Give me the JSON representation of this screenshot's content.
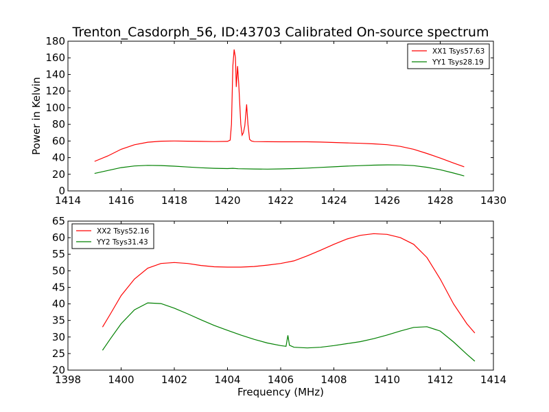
{
  "chart_data": [
    {
      "type": "line",
      "title": "Trenton_Casdorph_56, ID:43703 Calibrated On-source spectrum",
      "xlabel": "",
      "ylabel": "Power in Kelvin",
      "xlim": [
        1414,
        1430
      ],
      "ylim": [
        0,
        180
      ],
      "xticks": [
        1414,
        1416,
        1418,
        1420,
        1422,
        1424,
        1426,
        1428,
        1430
      ],
      "yticks": [
        0,
        20,
        40,
        60,
        80,
        100,
        120,
        140,
        160,
        180
      ],
      "grid": false,
      "legend": "top-right",
      "series": [
        {
          "name": "XX1 Tsys57.63",
          "color": "#ff0000",
          "points": [
            [
              1415.0,
              35.5
            ],
            [
              1415.5,
              42
            ],
            [
              1416.0,
              50
            ],
            [
              1416.5,
              55.5
            ],
            [
              1417.0,
              58.5
            ],
            [
              1417.5,
              59.8
            ],
            [
              1418.0,
              60
            ],
            [
              1418.5,
              59.8
            ],
            [
              1419.0,
              59.5
            ],
            [
              1419.5,
              59.3
            ],
            [
              1420.0,
              59.5
            ],
            [
              1420.1,
              61
            ],
            [
              1420.15,
              80
            ],
            [
              1420.2,
              150
            ],
            [
              1420.25,
              170
            ],
            [
              1420.3,
              160
            ],
            [
              1420.33,
              125
            ],
            [
              1420.38,
              150
            ],
            [
              1420.42,
              130
            ],
            [
              1420.5,
              80
            ],
            [
              1420.55,
              67
            ],
            [
              1420.6,
              70
            ],
            [
              1420.65,
              78
            ],
            [
              1420.72,
              104
            ],
            [
              1420.77,
              80
            ],
            [
              1420.83,
              62
            ],
            [
              1420.9,
              60
            ],
            [
              1421.0,
              59.3
            ],
            [
              1421.5,
              59.1
            ],
            [
              1422.0,
              59
            ],
            [
              1422.5,
              59
            ],
            [
              1423.0,
              59
            ],
            [
              1423.5,
              58.7
            ],
            [
              1424.0,
              58.2
            ],
            [
              1424.5,
              57.7
            ],
            [
              1425.0,
              57.2
            ],
            [
              1425.5,
              56.6
            ],
            [
              1426.0,
              55.6
            ],
            [
              1426.5,
              53.5
            ],
            [
              1427.0,
              50
            ],
            [
              1427.5,
              45
            ],
            [
              1428.0,
              39.5
            ],
            [
              1428.5,
              33.5
            ],
            [
              1428.9,
              29
            ]
          ]
        },
        {
          "name": "YY1 Tsys28.19",
          "color": "#008000",
          "points": [
            [
              1415.0,
              21
            ],
            [
              1415.5,
              24.5
            ],
            [
              1416.0,
              28
            ],
            [
              1416.5,
              30
            ],
            [
              1417.0,
              30.7
            ],
            [
              1417.5,
              30.5
            ],
            [
              1418.0,
              29.7
            ],
            [
              1418.5,
              28.7
            ],
            [
              1419.0,
              27.8
            ],
            [
              1419.5,
              27.2
            ],
            [
              1420.0,
              26.8
            ],
            [
              1420.2,
              27.2
            ],
            [
              1420.4,
              26.7
            ],
            [
              1421.0,
              26.3
            ],
            [
              1421.5,
              26.2
            ],
            [
              1422.0,
              26.4
            ],
            [
              1422.5,
              26.8
            ],
            [
              1423.0,
              27.4
            ],
            [
              1423.5,
              28.2
            ],
            [
              1424.0,
              29
            ],
            [
              1424.5,
              29.8
            ],
            [
              1425.0,
              30.4
            ],
            [
              1425.5,
              31
            ],
            [
              1426.0,
              31.3
            ],
            [
              1426.5,
              31.2
            ],
            [
              1427.0,
              30.4
            ],
            [
              1427.5,
              28.4
            ],
            [
              1428.0,
              25.4
            ],
            [
              1428.5,
              21.5
            ],
            [
              1428.9,
              18
            ]
          ]
        }
      ]
    },
    {
      "type": "line",
      "title": "",
      "xlabel": "Frequency (MHz)",
      "ylabel": "",
      "xlim": [
        1398,
        1414
      ],
      "ylim": [
        20,
        65
      ],
      "xticks": [
        1398,
        1400,
        1402,
        1404,
        1406,
        1408,
        1410,
        1412,
        1414
      ],
      "yticks": [
        20,
        25,
        30,
        35,
        40,
        45,
        50,
        55,
        60,
        65
      ],
      "grid": false,
      "legend": "top-left",
      "series": [
        {
          "name": "XX2 Tsys52.16",
          "color": "#ff0000",
          "points": [
            [
              1399.3,
              33
            ],
            [
              1399.6,
              37
            ],
            [
              1400.0,
              42.5
            ],
            [
              1400.5,
              47.5
            ],
            [
              1401.0,
              50.8
            ],
            [
              1401.5,
              52.2
            ],
            [
              1402.0,
              52.5
            ],
            [
              1402.5,
              52.2
            ],
            [
              1403.0,
              51.6
            ],
            [
              1403.5,
              51.2
            ],
            [
              1404.0,
              51.1
            ],
            [
              1404.5,
              51.1
            ],
            [
              1405.0,
              51.3
            ],
            [
              1405.5,
              51.7
            ],
            [
              1406.0,
              52.2
            ],
            [
              1406.5,
              53
            ],
            [
              1407.0,
              54.5
            ],
            [
              1407.5,
              56.2
            ],
            [
              1408.0,
              58
            ],
            [
              1408.5,
              59.6
            ],
            [
              1409.0,
              60.7
            ],
            [
              1409.5,
              61.2
            ],
            [
              1410.0,
              61
            ],
            [
              1410.5,
              60
            ],
            [
              1411.0,
              58
            ],
            [
              1411.5,
              54
            ],
            [
              1412.0,
              47.5
            ],
            [
              1412.5,
              40
            ],
            [
              1413.0,
              34
            ],
            [
              1413.3,
              31.2
            ]
          ]
        },
        {
          "name": "YY2 Tsys31.43",
          "color": "#008000",
          "points": [
            [
              1399.3,
              26
            ],
            [
              1399.6,
              29.5
            ],
            [
              1400.0,
              34
            ],
            [
              1400.5,
              38.2
            ],
            [
              1401.0,
              40.3
            ],
            [
              1401.5,
              40.1
            ],
            [
              1402.0,
              38.7
            ],
            [
              1402.5,
              37
            ],
            [
              1403.0,
              35.2
            ],
            [
              1403.5,
              33.5
            ],
            [
              1404.0,
              32
            ],
            [
              1404.5,
              30.6
            ],
            [
              1405.0,
              29.3
            ],
            [
              1405.5,
              28.2
            ],
            [
              1406.0,
              27.4
            ],
            [
              1406.2,
              27.2
            ],
            [
              1406.27,
              30.5
            ],
            [
              1406.33,
              27.5
            ],
            [
              1406.5,
              26.9
            ],
            [
              1407.0,
              26.7
            ],
            [
              1407.5,
              26.9
            ],
            [
              1408.0,
              27.4
            ],
            [
              1408.5,
              28
            ],
            [
              1409.0,
              28.6
            ],
            [
              1409.5,
              29.5
            ],
            [
              1410.0,
              30.6
            ],
            [
              1410.5,
              31.8
            ],
            [
              1411.0,
              32.9
            ],
            [
              1411.5,
              33.1
            ],
            [
              1412.0,
              31.8
            ],
            [
              1412.5,
              28.5
            ],
            [
              1413.0,
              24.8
            ],
            [
              1413.3,
              22.7
            ]
          ]
        }
      ]
    }
  ]
}
